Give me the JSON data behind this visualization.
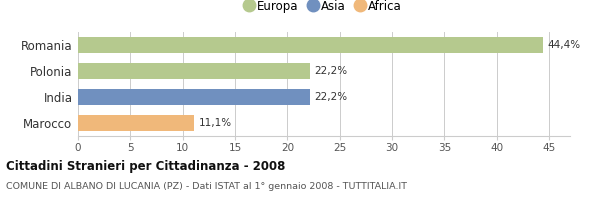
{
  "categories": [
    "Romania",
    "Polonia",
    "India",
    "Marocco"
  ],
  "values": [
    44.4,
    22.2,
    22.2,
    11.1
  ],
  "labels": [
    "44,4%",
    "22,2%",
    "22,2%",
    "11,1%"
  ],
  "colors": [
    "#b5c98e",
    "#b5c98e",
    "#7090bf",
    "#f0b87a"
  ],
  "legend": [
    {
      "label": "Europa",
      "color": "#b5c98e"
    },
    {
      "label": "Asia",
      "color": "#7090bf"
    },
    {
      "label": "Africa",
      "color": "#f0b87a"
    }
  ],
  "xlim": [
    0,
    47
  ],
  "xticks": [
    0,
    5,
    10,
    15,
    20,
    25,
    30,
    35,
    40,
    45
  ],
  "title": "Cittadini Stranieri per Cittadinanza - 2008",
  "subtitle": "COMUNE DI ALBANO DI LUCANIA (PZ) - Dati ISTAT al 1° gennaio 2008 - TUTTITALIA.IT",
  "background_color": "#ffffff"
}
